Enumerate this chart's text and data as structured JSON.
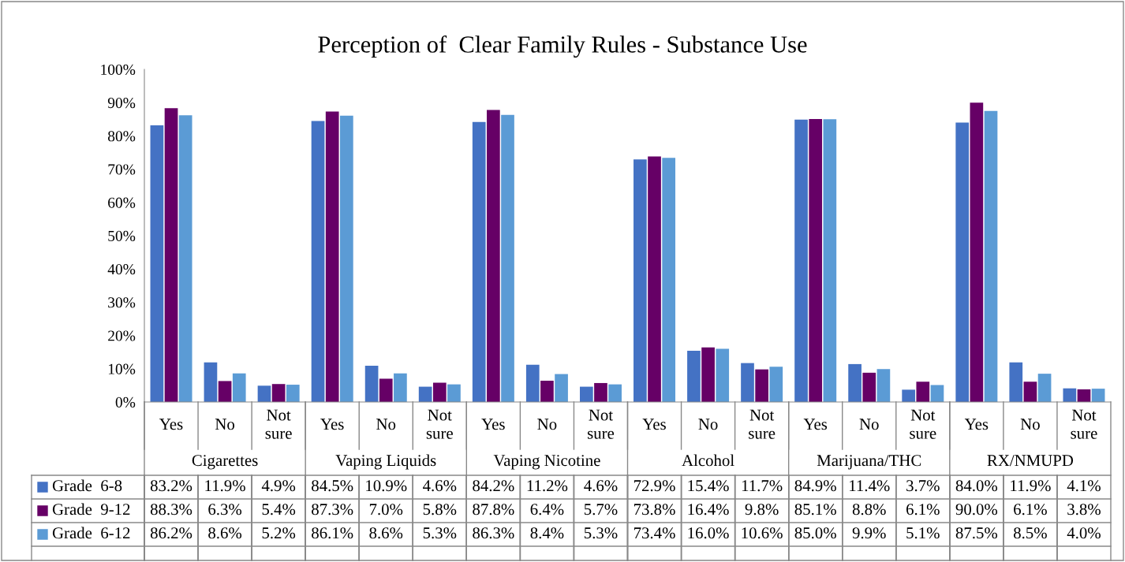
{
  "chart_data": {
    "type": "bar",
    "title": "Perception of  Clear Family Rules - Substance Use",
    "categories": [
      "Yes",
      "No",
      "Not sure",
      "Yes",
      "No",
      "Not sure",
      "Yes",
      "No",
      "Not sure",
      "Yes",
      "No",
      "Not sure",
      "Yes",
      "No",
      "Not sure",
      "Yes",
      "No",
      "Not sure"
    ],
    "annotations": [
      "Cigarettes",
      "Vaping Liquids",
      "Vaping Nicotine",
      "Alcohol",
      "Marijuana/THC",
      "RX/NMUPD"
    ],
    "series": [
      {
        "name": "Grade  6-8",
        "color": "#4472c4",
        "values": [
          83.2,
          11.9,
          4.9,
          84.5,
          10.9,
          4.6,
          84.2,
          11.2,
          4.6,
          72.9,
          15.4,
          11.7,
          84.9,
          11.4,
          3.7,
          84.0,
          11.9,
          4.1
        ],
        "value_labels": [
          "83.2%",
          "11.9%",
          "4.9%",
          "84.5%",
          "10.9%",
          "4.6%",
          "84.2%",
          "11.2%",
          "4.6%",
          "72.9%",
          "15.4%",
          "11.7%",
          "84.9%",
          "11.4%",
          "3.7%",
          "84.0%",
          "11.9%",
          "4.1%"
        ]
      },
      {
        "name": "Grade  9-12",
        "color": "#660066",
        "values": [
          88.3,
          6.3,
          5.4,
          87.3,
          7.0,
          5.8,
          87.8,
          6.4,
          5.7,
          73.8,
          16.4,
          9.8,
          85.1,
          8.8,
          6.1,
          90.0,
          6.1,
          3.8
        ],
        "value_labels": [
          "88.3%",
          "6.3%",
          "5.4%",
          "87.3%",
          "7.0%",
          "5.8%",
          "87.8%",
          "6.4%",
          "5.7%",
          "73.8%",
          "16.4%",
          "9.8%",
          "85.1%",
          "8.8%",
          "6.1%",
          "90.0%",
          "6.1%",
          "3.8%"
        ]
      },
      {
        "name": "Grade  6-12",
        "color": "#5b9bd5",
        "values": [
          86.2,
          8.6,
          5.2,
          86.1,
          8.6,
          5.3,
          86.3,
          8.4,
          5.3,
          73.4,
          16.0,
          10.6,
          85.0,
          9.9,
          5.1,
          87.5,
          8.5,
          4.0
        ],
        "value_labels": [
          "86.2%",
          "8.6%",
          "5.2%",
          "86.1%",
          "8.6%",
          "5.3%",
          "86.3%",
          "8.4%",
          "5.3%",
          "73.4%",
          "16.0%",
          "10.6%",
          "85.0%",
          "9.9%",
          "5.1%",
          "87.5%",
          "8.5%",
          "4.0%"
        ]
      }
    ],
    "ylim": [
      0,
      100
    ],
    "yticks": [
      {
        "value": 0,
        "label": "0%"
      },
      {
        "value": 10,
        "label": "10%"
      },
      {
        "value": 20,
        "label": "20%"
      },
      {
        "value": 30,
        "label": "30%"
      },
      {
        "value": 40,
        "label": "40%"
      },
      {
        "value": 50,
        "label": "50%"
      },
      {
        "value": 60,
        "label": "60%"
      },
      {
        "value": 70,
        "label": "70%"
      },
      {
        "value": 80,
        "label": "80%"
      },
      {
        "value": 90,
        "label": "90%"
      },
      {
        "value": 100,
        "label": "100%"
      }
    ],
    "legend": "bottom left"
  }
}
